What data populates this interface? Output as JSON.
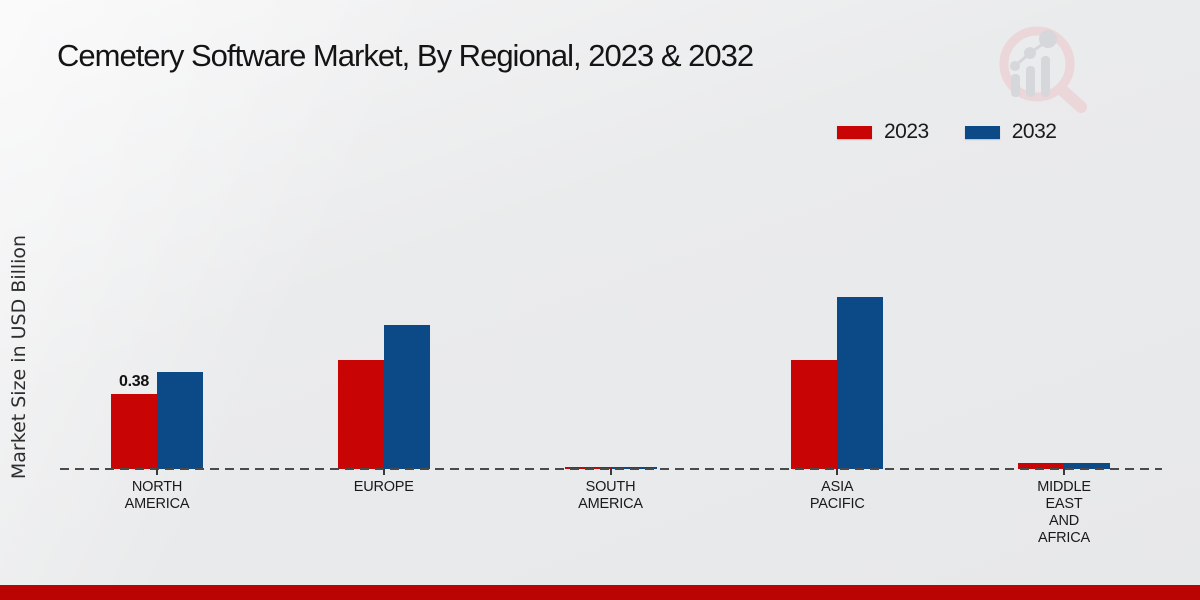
{
  "page": {
    "title": "Cemetery Software Market, By Regional, 2023 & 2032"
  },
  "y_axis": {
    "label": "Market Size in USD Billion"
  },
  "legend": {
    "items": [
      {
        "label": "2023",
        "color": "#c80404"
      },
      {
        "label": "2032",
        "color": "#0b4a87"
      }
    ]
  },
  "watermark_icon": "magnifier-bar-chart-logo",
  "colors": {
    "series_2023": "#c80404",
    "series_2032": "#0b4a87",
    "footer_bar": "#ba0303",
    "baseline": "#4a4a4a"
  },
  "chart_data": {
    "type": "bar",
    "title": "Cemetery Software Market, By Regional, 2023 & 2032",
    "xlabel": "",
    "ylabel": "Market Size in USD Billion",
    "categories": [
      "NORTH AMERICA",
      "EUROPE",
      "SOUTH AMERICA",
      "ASIA PACIFIC",
      "MIDDLE EAST AND AFRICA"
    ],
    "category_lines": [
      [
        "NORTH",
        "AMERICA"
      ],
      [
        "EUROPE"
      ],
      [
        "SOUTH",
        "AMERICA"
      ],
      [
        "ASIA",
        "PACIFIC"
      ],
      [
        "MIDDLE",
        "EAST",
        "AND",
        "AFRICA"
      ]
    ],
    "series": [
      {
        "name": "2023",
        "color": "#c80404",
        "values": [
          0.38,
          0.55,
          0.01,
          0.55,
          0.03
        ]
      },
      {
        "name": "2032",
        "color": "#0b4a87",
        "values": [
          0.49,
          0.73,
          0.01,
          0.87,
          0.03
        ]
      }
    ],
    "value_labels": [
      {
        "series": "2023",
        "category": "NORTH AMERICA",
        "text": "0.38"
      }
    ],
    "ylim": [
      0,
      1.0
    ],
    "grid": false,
    "baseline_style": "dashed",
    "legend_position": "top-right",
    "note_only_labeled_value": "0.38"
  }
}
